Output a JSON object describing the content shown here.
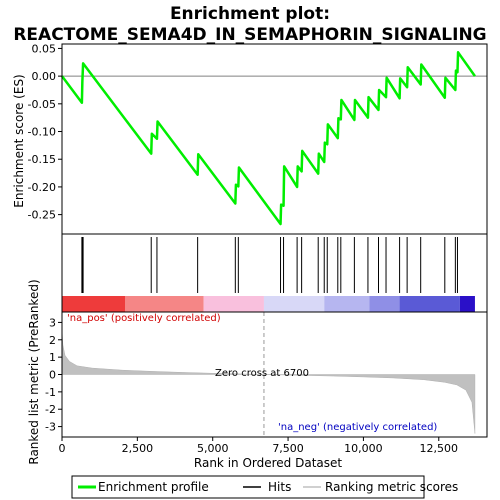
{
  "chart_data": {
    "type": "line",
    "title_line1": "Enrichment plot:",
    "title_line2": "REACTOME_SEMA4D_IN_SEMAPHORIN_SIGNALING",
    "top_panel": {
      "ylabel": "Enrichment score (ES)",
      "ylim": [
        -0.285,
        0.058
      ],
      "yticks": [
        0.05,
        0.0,
        -0.05,
        -0.1,
        -0.15,
        -0.2,
        -0.25
      ],
      "ytick_labels": [
        "0.05",
        "0.00",
        "-0.05",
        "-0.10",
        "-0.15",
        "-0.20",
        "-0.25"
      ],
      "line_color": "#00ee00",
      "series": [
        {
          "x": 0,
          "y": 0.0
        },
        {
          "x": 660,
          "y": -0.048
        },
        {
          "x": 675,
          "y": -0.01
        },
        {
          "x": 700,
          "y": 0.023
        },
        {
          "x": 2960,
          "y": -0.14
        },
        {
          "x": 2980,
          "y": -0.104
        },
        {
          "x": 3150,
          "y": -0.113
        },
        {
          "x": 3170,
          "y": -0.082
        },
        {
          "x": 4500,
          "y": -0.178
        },
        {
          "x": 4520,
          "y": -0.141
        },
        {
          "x": 5750,
          "y": -0.23
        },
        {
          "x": 5770,
          "y": -0.196
        },
        {
          "x": 5850,
          "y": -0.199
        },
        {
          "x": 5870,
          "y": -0.165
        },
        {
          "x": 7250,
          "y": -0.267
        },
        {
          "x": 7270,
          "y": -0.232
        },
        {
          "x": 7350,
          "y": -0.234
        },
        {
          "x": 7370,
          "y": -0.163
        },
        {
          "x": 7800,
          "y": -0.2
        },
        {
          "x": 7820,
          "y": -0.163
        },
        {
          "x": 7950,
          "y": -0.172
        },
        {
          "x": 7970,
          "y": -0.135
        },
        {
          "x": 8500,
          "y": -0.176
        },
        {
          "x": 8520,
          "y": -0.14
        },
        {
          "x": 8700,
          "y": -0.155
        },
        {
          "x": 8720,
          "y": -0.12
        },
        {
          "x": 8800,
          "y": -0.123
        },
        {
          "x": 8820,
          "y": -0.087
        },
        {
          "x": 9150,
          "y": -0.112
        },
        {
          "x": 9170,
          "y": -0.076
        },
        {
          "x": 9250,
          "y": -0.078
        },
        {
          "x": 9270,
          "y": -0.043
        },
        {
          "x": 9700,
          "y": -0.079
        },
        {
          "x": 9720,
          "y": -0.043
        },
        {
          "x": 10150,
          "y": -0.075
        },
        {
          "x": 10170,
          "y": -0.038
        },
        {
          "x": 10500,
          "y": -0.061
        },
        {
          "x": 10520,
          "y": -0.025
        },
        {
          "x": 10750,
          "y": -0.038
        },
        {
          "x": 10770,
          "y": -0.003
        },
        {
          "x": 11200,
          "y": -0.04
        },
        {
          "x": 11220,
          "y": -0.004
        },
        {
          "x": 11450,
          "y": -0.02
        },
        {
          "x": 11470,
          "y": 0.016
        },
        {
          "x": 11900,
          "y": -0.015
        },
        {
          "x": 11920,
          "y": 0.021
        },
        {
          "x": 12700,
          "y": -0.039
        },
        {
          "x": 12720,
          "y": -0.003
        },
        {
          "x": 13050,
          "y": -0.025
        },
        {
          "x": 13070,
          "y": 0.01
        },
        {
          "x": 13120,
          "y": 0.007
        },
        {
          "x": 13140,
          "y": 0.043
        },
        {
          "x": 13700,
          "y": 0.0
        }
      ]
    },
    "hits": [
      660,
      680,
      700,
      2960,
      3150,
      4500,
      5750,
      5850,
      7250,
      7350,
      7800,
      7950,
      8500,
      8700,
      8800,
      9150,
      9250,
      9700,
      10150,
      10500,
      10750,
      11200,
      11450,
      11900,
      12700,
      13050,
      13120
    ],
    "bottom_panel": {
      "ylabel": "Ranked list metric (PreRanked)",
      "ylim": [
        -3.6,
        3.6
      ],
      "yticks": [
        3,
        2,
        1,
        0,
        -1,
        -2,
        -3
      ],
      "ytick_labels": [
        "3",
        "2",
        "1",
        "0",
        "-1",
        "-2",
        "-3"
      ],
      "metric_curve": [
        {
          "x": 0,
          "y": 2.6
        },
        {
          "x": 30,
          "y": 1.7
        },
        {
          "x": 100,
          "y": 1.1
        },
        {
          "x": 250,
          "y": 0.75
        },
        {
          "x": 500,
          "y": 0.5
        },
        {
          "x": 1000,
          "y": 0.37
        },
        {
          "x": 2000,
          "y": 0.25
        },
        {
          "x": 3000,
          "y": 0.18
        },
        {
          "x": 4000,
          "y": 0.12
        },
        {
          "x": 5000,
          "y": 0.07
        },
        {
          "x": 6000,
          "y": 0.03
        },
        {
          "x": 6700,
          "y": 0.0
        },
        {
          "x": 8000,
          "y": -0.05
        },
        {
          "x": 9000,
          "y": -0.09
        },
        {
          "x": 10000,
          "y": -0.14
        },
        {
          "x": 11000,
          "y": -0.2
        },
        {
          "x": 12000,
          "y": -0.3
        },
        {
          "x": 12700,
          "y": -0.45
        },
        {
          "x": 13100,
          "y": -0.6
        },
        {
          "x": 13400,
          "y": -0.9
        },
        {
          "x": 13600,
          "y": -1.6
        },
        {
          "x": 13700,
          "y": -3.4
        }
      ],
      "zero_cross": 6700,
      "zero_cross_label": "Zero cross at 6700",
      "pos_label": "'na_pos' (positively correlated)",
      "neg_label": "'na_neg' (negatively correlated)"
    },
    "xlabel": "Rank in Ordered Dataset",
    "xlim": [
      0,
      14100
    ],
    "xticks": [
      0,
      2500,
      5000,
      7500,
      10000,
      12500
    ],
    "xtick_labels": [
      "0",
      "2,500",
      "5,000",
      "7,500",
      "10,000",
      "12,500"
    ],
    "colorbar_segments": [
      {
        "x0": 0,
        "x1": 2100,
        "color": "#ee3b3b"
      },
      {
        "x0": 2100,
        "x1": 4700,
        "color": "#f58686"
      },
      {
        "x0": 4700,
        "x1": 6700,
        "color": "#f9c0dd"
      },
      {
        "x0": 6700,
        "x1": 8700,
        "color": "#d8d8f7"
      },
      {
        "x0": 8700,
        "x1": 10200,
        "color": "#b6b6f0"
      },
      {
        "x0": 10200,
        "x1": 11200,
        "color": "#8f8fe6"
      },
      {
        "x0": 11200,
        "x1": 13200,
        "color": "#5a5ad6"
      },
      {
        "x0": 13200,
        "x1": 13700,
        "color": "#2a10c8"
      }
    ],
    "legend": [
      {
        "label": "Enrichment profile",
        "color": "#00ee00"
      },
      {
        "label": "Hits",
        "color": "#000000"
      },
      {
        "label": "Ranking metric scores",
        "color": "#c0c0c0"
      }
    ]
  }
}
